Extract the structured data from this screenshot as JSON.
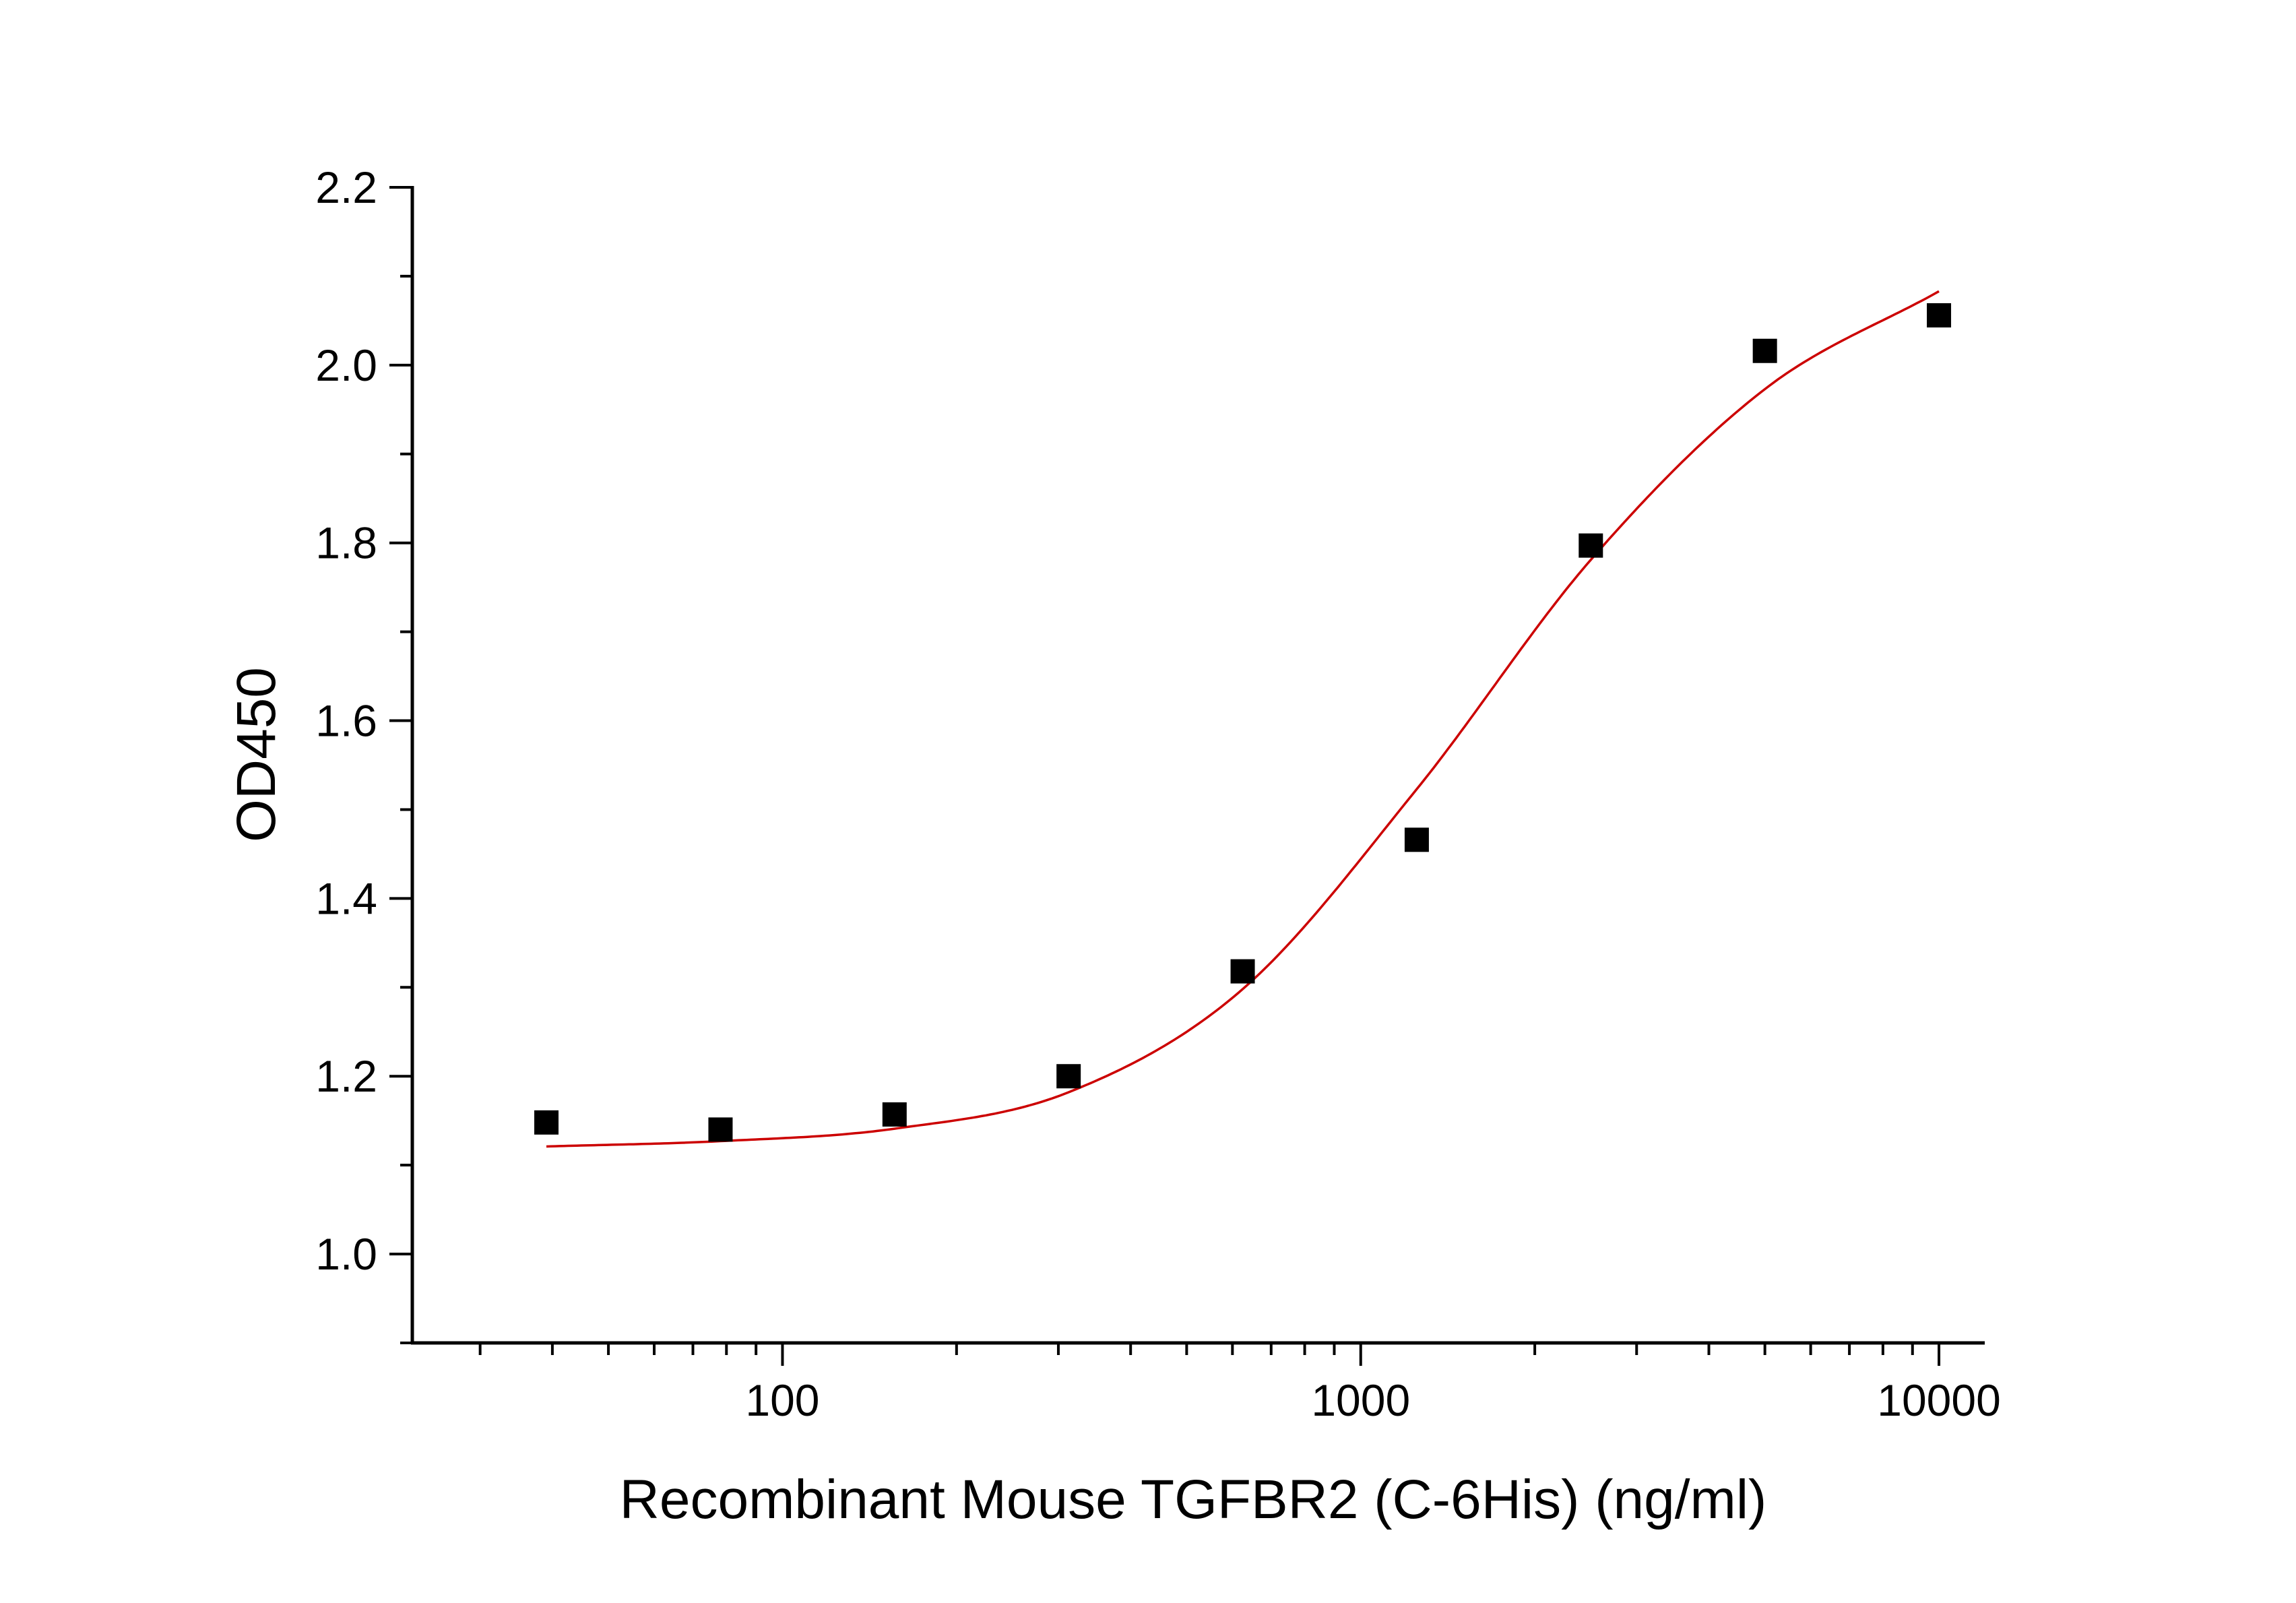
{
  "chart_data": {
    "type": "scatter",
    "title": "",
    "xlabel": "Recombinant Mouse TGFBR2 (C-6His) (ng/ml)",
    "ylabel": "OD450",
    "x_scale": "log",
    "xlim": [
      22.9,
      12000
    ],
    "ylim": [
      0.9,
      2.2
    ],
    "x_ticks": [
      100,
      1000,
      10000
    ],
    "x_tick_labels": [
      "100",
      "1000",
      "10000"
    ],
    "y_ticks": [
      1.0,
      1.2,
      1.4,
      1.6,
      1.8,
      2.0,
      2.2
    ],
    "y_tick_labels": [
      "1.0",
      "1.2",
      "1.4",
      "1.6",
      "1.8",
      "2.0",
      "2.2"
    ],
    "grid": false,
    "legend": "none",
    "series": [
      {
        "kind": "points",
        "marker": "square",
        "color": "#000000",
        "x": [
          39.06,
          78.13,
          156.25,
          312.5,
          625,
          1250,
          2500,
          5000,
          10000
        ],
        "y": [
          1.148,
          1.14,
          1.157,
          1.2,
          1.318,
          1.466,
          1.797,
          2.016,
          2.056
        ]
      },
      {
        "kind": "fit",
        "color": "#cc0000",
        "x": [
          39.06,
          78.13,
          156.25,
          312.5,
          625,
          1250,
          2500,
          5000,
          10000
        ],
        "y": [
          1.121,
          1.127,
          1.141,
          1.182,
          1.298,
          1.523,
          1.781,
          1.973,
          2.083
        ]
      }
    ]
  }
}
